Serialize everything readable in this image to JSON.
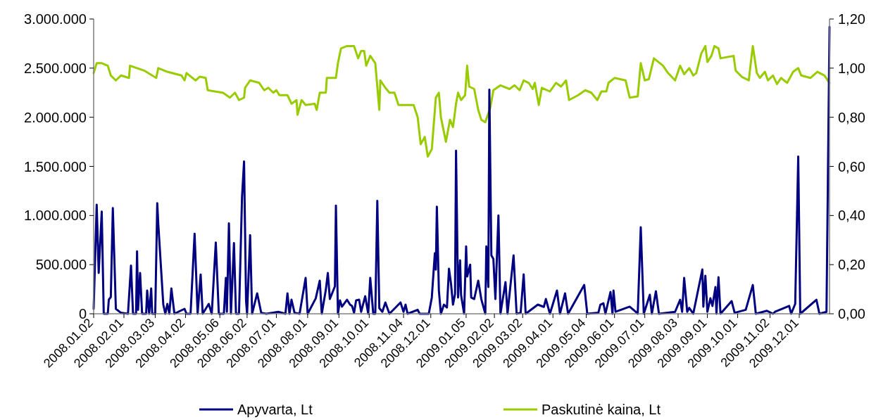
{
  "chart_data": {
    "type": "line",
    "legend": "bottom",
    "xlim": [
      "2008-01-02",
      "2009-12-31"
    ],
    "xticks": [
      {
        "value": "2008-01-02",
        "label": "2008.01.02"
      },
      {
        "value": "2008-02-01",
        "label": "2008.02.01"
      },
      {
        "value": "2008-03-03",
        "label": "2008.03.03"
      },
      {
        "value": "2008-04-02",
        "label": "2008.04.02"
      },
      {
        "value": "2008-05-06",
        "label": "2008.05.06"
      },
      {
        "value": "2008-06-02",
        "label": "2008.06.02"
      },
      {
        "value": "2008-07-01",
        "label": "2008.07.01"
      },
      {
        "value": "2008-08-01",
        "label": "2008.08.01"
      },
      {
        "value": "2008-09-01",
        "label": "2008.09.01"
      },
      {
        "value": "2008-10-01",
        "label": "2008.10.01"
      },
      {
        "value": "2008-11-04",
        "label": "2008.11.04"
      },
      {
        "value": "2008-12-01",
        "label": "2008.12.01"
      },
      {
        "value": "2009-01-05",
        "label": "2009.01.05"
      },
      {
        "value": "2009-02-02",
        "label": "2009.02.02"
      },
      {
        "value": "2009-03-02",
        "label": "2009.03.02"
      },
      {
        "value": "2009-04-01",
        "label": "2009.04.01"
      },
      {
        "value": "2009-05-04",
        "label": "2009.05.04"
      },
      {
        "value": "2009-06-01",
        "label": "2009.06.01"
      },
      {
        "value": "2009-07-01",
        "label": "2009.07.01"
      },
      {
        "value": "2009-08-03",
        "label": "2009.08.03"
      },
      {
        "value": "2009-09-01",
        "label": "2009.09.01"
      },
      {
        "value": "2009-10-01",
        "label": "2009.10.01"
      },
      {
        "value": "2009-11-02",
        "label": "2009.11.02"
      },
      {
        "value": "2009-12-01",
        "label": "2009.12.01"
      }
    ],
    "ylim": [
      0,
      3000000
    ],
    "yticks": [
      {
        "value": 0,
        "label": "0"
      },
      {
        "value": 500000,
        "label": "500.000"
      },
      {
        "value": 1000000,
        "label": "1.000.000"
      },
      {
        "value": 1500000,
        "label": "1.500.000"
      },
      {
        "value": 2000000,
        "label": "2.000.000"
      },
      {
        "value": 2500000,
        "label": "2.500.000"
      },
      {
        "value": 3000000,
        "label": "3.000.000"
      }
    ],
    "y2lim": [
      0,
      1.2
    ],
    "y2ticks": [
      {
        "value": 0,
        "label": "0,00"
      },
      {
        "value": 0.2,
        "label": "0,20"
      },
      {
        "value": 0.4,
        "label": "0,40"
      },
      {
        "value": 0.6,
        "label": "0,60"
      },
      {
        "value": 0.8,
        "label": "0,80"
      },
      {
        "value": 1,
        "label": "1,00"
      },
      {
        "value": 1.2,
        "label": "1,20"
      }
    ],
    "series": [
      {
        "name": "Paskutinė kaina, Lt",
        "color": "#99cc00",
        "axis": "y2",
        "x": [
          "2008-01-02",
          "2008-01-05",
          "2008-01-10",
          "2008-01-16",
          "2008-01-19",
          "2008-01-24",
          "2008-01-29",
          "2008-02-06",
          "2008-02-07",
          "2008-02-21",
          "2008-03-04",
          "2008-03-06",
          "2008-03-15",
          "2008-03-29",
          "2008-04-01",
          "2008-04-03",
          "2008-04-12",
          "2008-04-16",
          "2008-04-22",
          "2008-04-24",
          "2008-05-01",
          "2008-05-09",
          "2008-05-16",
          "2008-05-21",
          "2008-05-25",
          "2008-05-30",
          "2008-05-31",
          "2008-06-05",
          "2008-06-14",
          "2008-06-19",
          "2008-06-23",
          "2008-06-28",
          "2008-07-01",
          "2008-07-04",
          "2008-07-12",
          "2008-07-16",
          "2008-07-21",
          "2008-07-22",
          "2008-07-26",
          "2008-07-30",
          "2008-08-08",
          "2008-08-10",
          "2008-08-13",
          "2008-08-19",
          "2008-08-20",
          "2008-08-29",
          "2008-08-31",
          "2008-09-03",
          "2008-09-09",
          "2008-09-16",
          "2008-09-20",
          "2008-09-23",
          "2008-09-26",
          "2008-09-28",
          "2008-10-02",
          "2008-10-07",
          "2008-10-11",
          "2008-10-12",
          "2008-10-17",
          "2008-10-21",
          "2008-10-26",
          "2008-10-30",
          "2008-11-14",
          "2008-11-18",
          "2008-11-21",
          "2008-11-25",
          "2008-11-28",
          "2008-12-02",
          "2008-12-06",
          "2008-12-09",
          "2008-12-11",
          "2008-12-16",
          "2008-12-20",
          "2008-12-23",
          "2008-12-26",
          "2008-12-28",
          "2008-12-31",
          "2009-01-04",
          "2009-01-06",
          "2009-01-08",
          "2009-01-13",
          "2009-01-17",
          "2009-01-20",
          "2009-01-24",
          "2009-01-29",
          "2009-02-01",
          "2009-02-08",
          "2009-02-17",
          "2009-02-22",
          "2009-02-27",
          "2009-03-03",
          "2009-03-08",
          "2009-03-12",
          "2009-03-14",
          "2009-03-18",
          "2009-03-21",
          "2009-03-29",
          "2009-04-04",
          "2009-04-09",
          "2009-04-14",
          "2009-04-17",
          "2009-04-26",
          "2009-05-03",
          "2009-05-09",
          "2009-05-15",
          "2009-05-19",
          "2009-05-24",
          "2009-05-26",
          "2009-06-01",
          "2009-06-12",
          "2009-06-16",
          "2009-06-24",
          "2009-06-27",
          "2009-07-01",
          "2009-07-05",
          "2009-07-10",
          "2009-07-19",
          "2009-07-24",
          "2009-07-31",
          "2009-08-05",
          "2009-08-09",
          "2009-08-14",
          "2009-08-18",
          "2009-08-21",
          "2009-08-26",
          "2009-08-30",
          "2009-09-01",
          "2009-09-05",
          "2009-09-08",
          "2009-09-12",
          "2009-09-14",
          "2009-09-27",
          "2009-09-29",
          "2009-10-05",
          "2009-10-12",
          "2009-10-16",
          "2009-10-20",
          "2009-10-23",
          "2009-10-28",
          "2009-10-31",
          "2009-11-05",
          "2009-11-09",
          "2009-11-13",
          "2009-11-19",
          "2009-11-25",
          "2009-11-30",
          "2009-12-03",
          "2009-12-12",
          "2009-12-19",
          "2009-12-26",
          "2009-12-31"
        ],
        "values": [
          0.98,
          1.02,
          1.02,
          1.01,
          0.97,
          0.95,
          0.97,
          0.96,
          1.01,
          0.99,
          0.96,
          1.0,
          0.985,
          0.97,
          0.95,
          0.98,
          0.95,
          0.965,
          0.96,
          0.91,
          0.905,
          0.9,
          0.88,
          0.9,
          0.87,
          0.88,
          0.92,
          0.95,
          0.94,
          0.91,
          0.92,
          0.9,
          0.91,
          0.89,
          0.89,
          0.855,
          0.87,
          0.81,
          0.87,
          0.85,
          0.855,
          0.83,
          0.9,
          0.9,
          0.96,
          0.96,
          1.02,
          1.08,
          1.09,
          1.09,
          1.04,
          1.07,
          1.07,
          1.01,
          1.05,
          1.02,
          0.83,
          0.95,
          0.92,
          0.9,
          0.9,
          0.85,
          0.85,
          0.8,
          0.69,
          0.72,
          0.64,
          0.67,
          0.88,
          0.9,
          0.8,
          0.7,
          0.79,
          0.76,
          0.855,
          0.9,
          0.87,
          0.89,
          1.01,
          0.925,
          0.915,
          0.83,
          0.79,
          0.78,
          0.84,
          0.91,
          0.93,
          0.915,
          0.93,
          0.91,
          0.95,
          0.94,
          0.915,
          0.94,
          0.85,
          0.92,
          0.905,
          0.94,
          0.925,
          0.95,
          0.87,
          0.89,
          0.91,
          0.9,
          0.87,
          0.905,
          0.905,
          0.94,
          0.96,
          0.95,
          0.88,
          0.885,
          1.02,
          0.95,
          0.955,
          1.04,
          1.01,
          0.98,
          0.95,
          1.01,
          0.975,
          1.0,
          0.97,
          0.98,
          1.06,
          1.09,
          1.025,
          1.05,
          1.09,
          1.08,
          1.04,
          1.05,
          0.99,
          0.965,
          0.95,
          1.09,
          0.98,
          0.96,
          0.985,
          0.95,
          0.97,
          0.935,
          0.96,
          0.94,
          0.985,
          1.0,
          0.97,
          0.96,
          0.985,
          0.97,
          0.94
        ]
      },
      {
        "name": "Apyvarta, Lt",
        "color": "#000080",
        "x": [
          "2008-01-02",
          "2008-01-05",
          "2008-01-07",
          "2008-01-10",
          "2008-01-12",
          "2008-01-16",
          "2008-01-17",
          "2008-01-19",
          "2008-01-21",
          "2008-01-24",
          "2008-01-29",
          "2008-02-05",
          "2008-02-08",
          "2008-02-10",
          "2008-02-13",
          "2008-02-14",
          "2008-02-15",
          "2008-02-17",
          "2008-02-19",
          "2008-02-23",
          "2008-02-24",
          "2008-02-26",
          "2008-02-28",
          "2008-02-29",
          "2008-03-03",
          "2008-03-05",
          "2008-03-06",
          "2008-03-09",
          "2008-03-11",
          "2008-03-13",
          "2008-03-15",
          "2008-03-17",
          "2008-03-19",
          "2008-03-22",
          "2008-04-01",
          "2008-04-03",
          "2008-04-07",
          "2008-04-11",
          "2008-04-14",
          "2008-04-17",
          "2008-04-19",
          "2008-04-25",
          "2008-04-28",
          "2008-05-02",
          "2008-05-05",
          "2008-05-10",
          "2008-05-12",
          "2008-05-13",
          "2008-05-15",
          "2008-05-17",
          "2008-05-20",
          "2008-05-22",
          "2008-05-25",
          "2008-05-28",
          "2008-05-30",
          "2008-06-01",
          "2008-06-02",
          "2008-06-05",
          "2008-06-07",
          "2008-06-12",
          "2008-06-16",
          "2008-06-21",
          "2008-07-03",
          "2008-07-10",
          "2008-07-12",
          "2008-07-14",
          "2008-07-16",
          "2008-07-19",
          "2008-07-24",
          "2008-07-30",
          "2008-08-01",
          "2008-08-09",
          "2008-08-13",
          "2008-08-15",
          "2008-08-19",
          "2008-08-21",
          "2008-08-23",
          "2008-08-28",
          "2008-08-29",
          "2008-08-31",
          "2008-09-02",
          "2008-09-04",
          "2008-09-09",
          "2008-09-12",
          "2008-09-14",
          "2008-09-16",
          "2008-09-18",
          "2008-09-21",
          "2008-09-23",
          "2008-09-27",
          "2008-09-30",
          "2008-10-02",
          "2008-10-05",
          "2008-10-07",
          "2008-10-09",
          "2008-10-11",
          "2008-10-14",
          "2008-10-17",
          "2008-10-21",
          "2008-11-01",
          "2008-11-04",
          "2008-11-06",
          "2008-11-08",
          "2008-11-18",
          "2008-11-20",
          "2008-11-29",
          "2008-12-02",
          "2008-12-05",
          "2008-12-06",
          "2008-12-07",
          "2008-12-09",
          "2008-12-11",
          "2008-12-14",
          "2008-12-17",
          "2008-12-19",
          "2008-12-21",
          "2008-12-23",
          "2008-12-25",
          "2008-12-26",
          "2008-12-28",
          "2008-12-30",
          "2008-12-31",
          "2009-01-03",
          "2009-01-05",
          "2009-01-06",
          "2009-01-09",
          "2009-01-10",
          "2009-01-13",
          "2009-01-17",
          "2009-01-20",
          "2009-01-24",
          "2009-01-25",
          "2009-01-27",
          "2009-01-28",
          "2009-01-30",
          "2009-02-01",
          "2009-02-03",
          "2009-02-06",
          "2009-02-08",
          "2009-02-13",
          "2009-02-15",
          "2009-02-21",
          "2009-02-24",
          "2009-02-28",
          "2009-03-03",
          "2009-03-05",
          "2009-03-14",
          "2009-03-17",
          "2009-03-23",
          "2009-03-25",
          "2009-03-29",
          "2009-04-05",
          "2009-04-08",
          "2009-04-13",
          "2009-04-16",
          "2009-05-02",
          "2009-05-05",
          "2009-05-16",
          "2009-05-18",
          "2009-05-21",
          "2009-05-23",
          "2009-05-28",
          "2009-05-30",
          "2009-05-31",
          "2009-06-02",
          "2009-06-16",
          "2009-06-22",
          "2009-06-24",
          "2009-06-27",
          "2009-06-30",
          "2009-07-06",
          "2009-07-08",
          "2009-07-12",
          "2009-07-15",
          "2009-07-31",
          "2009-08-05",
          "2009-08-07",
          "2009-08-09",
          "2009-08-12",
          "2009-08-14",
          "2009-08-18",
          "2009-08-27",
          "2009-08-28",
          "2009-08-30",
          "2009-09-01",
          "2009-09-04",
          "2009-09-06",
          "2009-09-09",
          "2009-09-10",
          "2009-09-12",
          "2009-09-14",
          "2009-09-25",
          "2009-09-28",
          "2009-10-09",
          "2009-10-16",
          "2009-10-19",
          "2009-10-30",
          "2009-11-05",
          "2009-11-07",
          "2009-11-21",
          "2009-11-23",
          "2009-11-27",
          "2009-11-30",
          "2009-12-02",
          "2009-12-18",
          "2009-12-21",
          "2009-12-28",
          "2009-12-31"
        ],
        "values": [
          50000,
          1110000,
          415000,
          1040000,
          0,
          0,
          143000,
          170000,
          1075000,
          50000,
          10000,
          0,
          490000,
          0,
          0,
          635000,
          40000,
          415000,
          0,
          0,
          236000,
          0,
          258000,
          0,
          0,
          1125000,
          920000,
          422000,
          93000,
          0,
          100000,
          0,
          258000,
          0,
          50000,
          0,
          0,
          815000,
          0,
          400000,
          0,
          100000,
          0,
          725000,
          0,
          0,
          365000,
          20000,
          920000,
          0,
          720000,
          0,
          0,
          1190000,
          1550000,
          129000,
          0,
          800000,
          0,
          208000,
          10000,
          0,
          20000,
          0,
          208000,
          0,
          143000,
          10000,
          0,
          365000,
          0,
          157000,
          337000,
          0,
          243000,
          415000,
          150000,
          279000,
          1100000,
          0,
          136000,
          72000,
          143000,
          93000,
          79000,
          10000,
          136000,
          143000,
          20000,
          179000,
          0,
          365000,
          0,
          0,
          1150000,
          57000,
          20000,
          115000,
          0,
          115000,
          20000,
          93000,
          0,
          40000,
          0,
          0,
          165000,
          615000,
          450000,
          1090000,
          236000,
          0,
          93000,
          64000,
          458000,
          308000,
          93000,
          200000,
          1660000,
          165000,
          544000,
          190000,
          0,
          685000,
          379000,
          500000,
          165000,
          150000,
          337000,
          150000,
          0,
          685000,
          272000,
          2280000,
          594000,
          558000,
          150000,
          1000000,
          0,
          322000,
          0,
          594000,
          0,
          10000,
          401000,
          0,
          70000,
          93000,
          70000,
          150000,
          0,
          236000,
          0,
          208000,
          0,
          293000,
          0,
          10000,
          93000,
          107000,
          0,
          222000,
          0,
          236000,
          20000,
          72000,
          20000,
          0,
          880000,
          0,
          193000,
          0,
          229000,
          0,
          20000,
          143000,
          20000,
          365000,
          20000,
          60000,
          0,
          451000,
          72000,
          387000,
          20000,
          157000,
          79000,
          272000,
          0,
          372000,
          0,
          129000,
          10000,
          40000,
          293000,
          0,
          30000,
          0,
          20000,
          80000,
          0,
          100000,
          1600000,
          0,
          143000,
          0,
          20000,
          2920000
        ]
      }
    ]
  }
}
